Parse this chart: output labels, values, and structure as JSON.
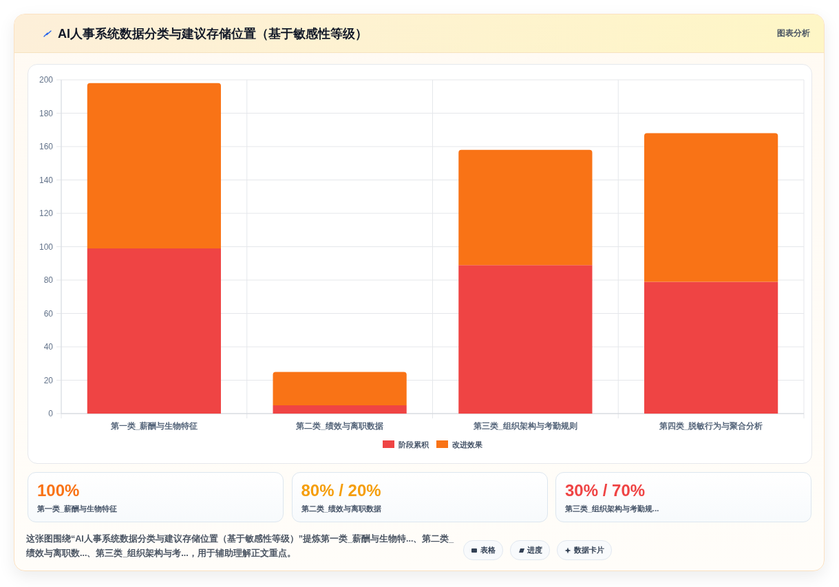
{
  "chart_data": [
    {
      "type": "bar",
      "title": "AI人事系统数据分类与建议存储位置（基于敏感性等级）",
      "categories": [
        "第一类_薪酬与生物特征",
        "第二类_绩效与离职数据",
        "第三类_组织架构与考勤规则",
        "第四类_脱敏行为与聚合分析"
      ],
      "series": [
        {
          "name": "阶段累积",
          "color": "#ef4444",
          "values": [
            99,
            5,
            89,
            79
          ]
        },
        {
          "name": "改进效果",
          "color": "#f97316",
          "values": [
            99,
            20,
            69,
            89
          ]
        }
      ],
      "stacked": true,
      "ylim": [
        0,
        200
      ],
      "yticks": [
        0,
        20,
        40,
        60,
        80,
        100,
        120,
        140,
        160,
        180,
        200
      ],
      "grid": true,
      "legend": "bottom",
      "annotations": [
        "图表分析",
        "这张图围绕“AI人事系统数据分类与建议存储位置（基于敏感性等级）”提炼第一类_薪酬与生物特...、第二类_绩效与离职数...、第三类_组织架构与考...，用于辅助理解正文重点。",
        "表格",
        "进度",
        "数据卡片"
      ]
    },
    {
      "type": "other",
      "title": "100%",
      "subtitle": "第一类_薪酬与生物特征",
      "color": "#f97316"
    },
    {
      "type": "other",
      "title": "80% / 20%",
      "subtitle": "第二类_绩效与离职数据",
      "color": "#f59e0b"
    },
    {
      "type": "other",
      "title": "30% / 70%",
      "subtitle": "第三类_组织架构与考勤规...",
      "color": "#ef4444"
    }
  ]
}
